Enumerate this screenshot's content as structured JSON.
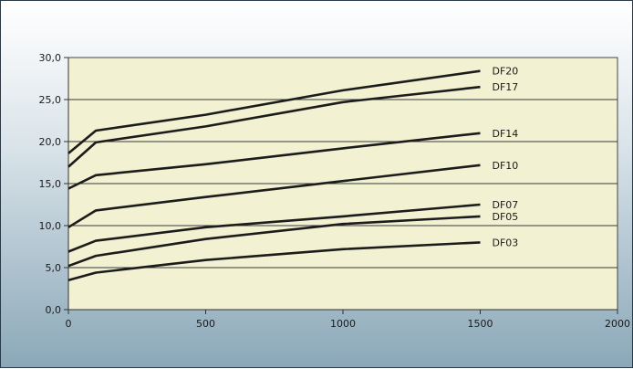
{
  "chart_data": {
    "type": "line",
    "title": "",
    "xlabel": "",
    "ylabel": "",
    "xlim": [
      0,
      2000
    ],
    "ylim": [
      0,
      30
    ],
    "x_ticks": [
      "0",
      "500",
      "1000",
      "1500",
      "2000"
    ],
    "y_ticks": [
      "0,0",
      "5,0",
      "10,0",
      "15,0",
      "20,0",
      "25,0",
      "30,0"
    ],
    "grid": "horizontal",
    "plot_background": "#f2f2d2",
    "line_color": "#1c1c1c",
    "series": [
      {
        "name": "DF20",
        "x": [
          0,
          100,
          500,
          1000,
          1500
        ],
        "y": [
          18.6,
          21.3,
          23.2,
          26.1,
          28.4
        ]
      },
      {
        "name": "DF17",
        "x": [
          0,
          100,
          500,
          1000,
          1500
        ],
        "y": [
          17.0,
          19.9,
          21.8,
          24.7,
          26.5
        ]
      },
      {
        "name": "DF14",
        "x": [
          0,
          100,
          500,
          1000,
          1500
        ],
        "y": [
          14.4,
          16.0,
          17.3,
          19.2,
          21.0
        ]
      },
      {
        "name": "DF10",
        "x": [
          0,
          100,
          500,
          1000,
          1500
        ],
        "y": [
          9.8,
          11.8,
          13.4,
          15.3,
          17.2
        ]
      },
      {
        "name": "DF07",
        "x": [
          0,
          100,
          500,
          1000,
          1500
        ],
        "y": [
          6.9,
          8.2,
          9.8,
          11.1,
          12.5
        ]
      },
      {
        "name": "DF05",
        "x": [
          0,
          100,
          500,
          1000,
          1500
        ],
        "y": [
          5.2,
          6.4,
          8.4,
          10.2,
          11.1
        ]
      },
      {
        "name": "DF03",
        "x": [
          0,
          100,
          500,
          1000,
          1500
        ],
        "y": [
          3.5,
          4.4,
          5.9,
          7.2,
          8.0
        ]
      }
    ]
  }
}
